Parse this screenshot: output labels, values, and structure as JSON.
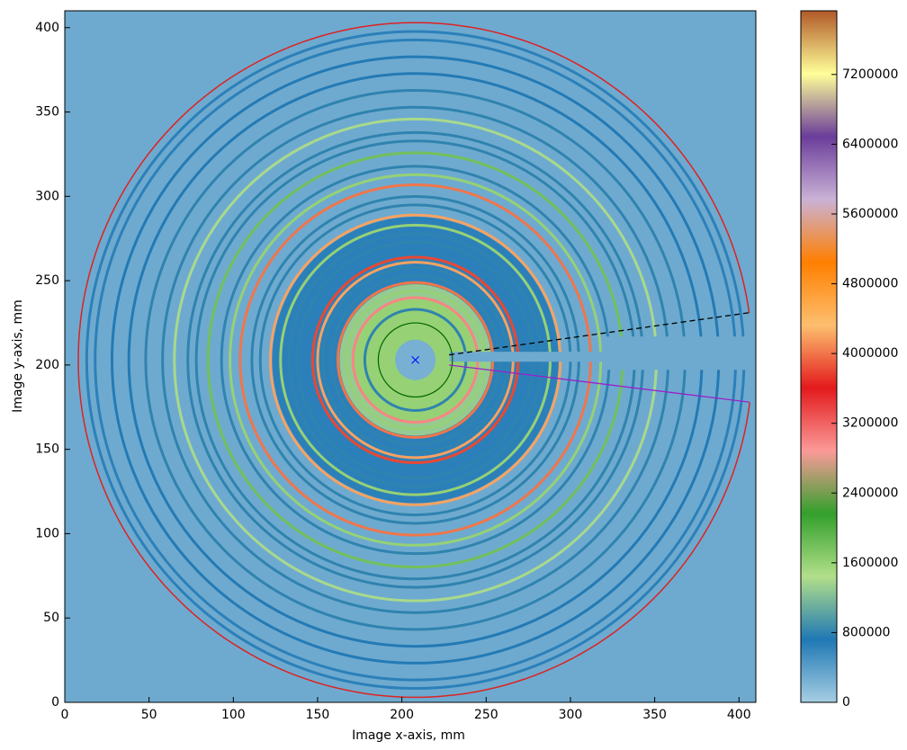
{
  "chart_data": {
    "type": "image",
    "xlabel": "Image x-axis, mm",
    "ylabel": "Image y-axis, mm",
    "xlim": [
      0,
      410
    ],
    "ylim": [
      0,
      410
    ],
    "xticks": [
      0,
      50,
      100,
      150,
      200,
      250,
      300,
      350,
      400
    ],
    "yticks": [
      0,
      50,
      100,
      150,
      200,
      250,
      300,
      350,
      400
    ],
    "colorbar": {
      "clim": [
        0,
        7930000
      ],
      "ticks": [
        0,
        800000,
        1600000,
        2400000,
        3200000,
        4000000,
        4800000,
        5600000,
        6400000,
        7200000
      ],
      "colormap": [
        "#a6cee3",
        "#1f78b4",
        "#b2df8a",
        "#33a02c",
        "#fb9a99",
        "#e31a1c",
        "#fdbf6f",
        "#ff7f00",
        "#cab2d6",
        "#6a3d9a",
        "#ffff99",
        "#b15928"
      ]
    },
    "background_value": 300000,
    "center": {
      "x": 208,
      "y": 203,
      "color": "#0000ff"
    },
    "zones": {
      "radius": [
        85,
        45,
        38,
        12
      ],
      "values": [
        650000,
        1300000,
        1600000,
        250000
      ]
    },
    "rings": {
      "radius": [
        30,
        37,
        41,
        46,
        50,
        55,
        58,
        61,
        70,
        75,
        80,
        86,
        92,
        97,
        104,
        110,
        115,
        123,
        130,
        135,
        143,
        150,
        160,
        170,
        180,
        190,
        195
      ],
      "values": [
        800000,
        3000000,
        1600000,
        4000000,
        800000,
        800000,
        4200000,
        3800000,
        800000,
        800000,
        1600000,
        4200000,
        800000,
        800000,
        4000000,
        1600000,
        800000,
        1800000,
        800000,
        800000,
        1400000,
        800000,
        800000,
        700000,
        700000,
        650000,
        650000
      ]
    },
    "circle": {
      "r": 22,
      "color": "#006400"
    },
    "arc": {
      "r": 200,
      "start_deg": 8,
      "end_deg": 352.8,
      "color": "#dd2222"
    },
    "lines": [
      {
        "x": [
          228,
          406
        ],
        "y": [
          206,
          231
        ],
        "color": "#000000",
        "dash": true
      },
      {
        "x": [
          228,
          406
        ],
        "y": [
          200,
          178
        ],
        "color": "#9922cc",
        "dash": false
      }
    ]
  }
}
